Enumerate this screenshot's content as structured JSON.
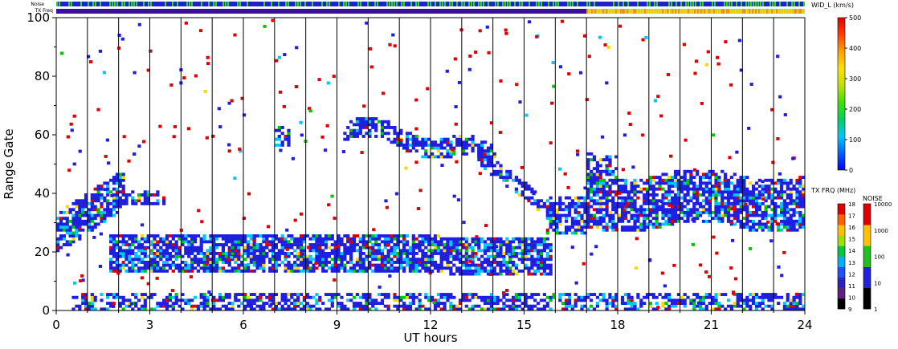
{
  "header": {
    "noise_label": "Noise",
    "txfreq_label": "TX Freq"
  },
  "colorbars": {
    "width": {
      "title": "WID_L (km/s)",
      "ticks": [
        "0",
        "100",
        "200",
        "300",
        "400",
        "500"
      ]
    },
    "txfreq": {
      "title": "TX FRQ (MHz)",
      "ticks": [
        "9",
        "10",
        "11",
        "12",
        "13",
        "14",
        "15",
        "16",
        "17",
        "18"
      ]
    },
    "noise": {
      "title": "NOISE",
      "ticks": [
        "1",
        "10",
        "100",
        "1000",
        "10000"
      ]
    }
  },
  "chart_data": {
    "type": "heatmap",
    "title": "",
    "xlabel": "UT hours",
    "ylabel": "Range Gate",
    "xlim": [
      0,
      24
    ],
    "ylim": [
      0,
      100
    ],
    "x_ticks": [
      "0",
      "3",
      "6",
      "9",
      "12",
      "15",
      "18",
      "21",
      "24"
    ],
    "y_ticks": [
      "0",
      "20",
      "40",
      "60",
      "80",
      "100"
    ],
    "grid": "vertical lines every 1 UT hour",
    "colors": {
      "low": "#1f1fe0",
      "mid": "#00c8ff",
      "green": "#00c800",
      "yellow": "#ffd700",
      "red": "#e00000",
      "noise_bar": "#2020d0",
      "noise_alt": "#30d030",
      "txfreq_bar": "#3a10a0",
      "txfreq_alt": "#f0e000"
    },
    "echo_regions": [
      {
        "name": "band-near-range",
        "x": [
          0.5,
          24
        ],
        "y": [
          0,
          5
        ]
      },
      {
        "name": "band-20",
        "x": [
          1.7,
          15.8
        ],
        "y": [
          10,
          26
        ]
      },
      {
        "name": "early-slant",
        "x": [
          0,
          2.2
        ],
        "y": [
          18,
          46
        ]
      },
      {
        "name": "band-36-early",
        "x": [
          2,
          3.5
        ],
        "y": [
          36,
          40
        ]
      },
      {
        "name": "arc-55",
        "x": [
          9.2,
          14
        ],
        "y": [
          48,
          66
        ]
      },
      {
        "name": "descent",
        "x": [
          13.5,
          16
        ],
        "y": [
          30,
          50
        ]
      },
      {
        "name": "blob-60",
        "x": [
          7,
          7.4
        ],
        "y": [
          55,
          64
        ]
      },
      {
        "name": "band-35-late",
        "x": [
          15.7,
          24
        ],
        "y": [
          26,
          56
        ]
      }
    ]
  }
}
